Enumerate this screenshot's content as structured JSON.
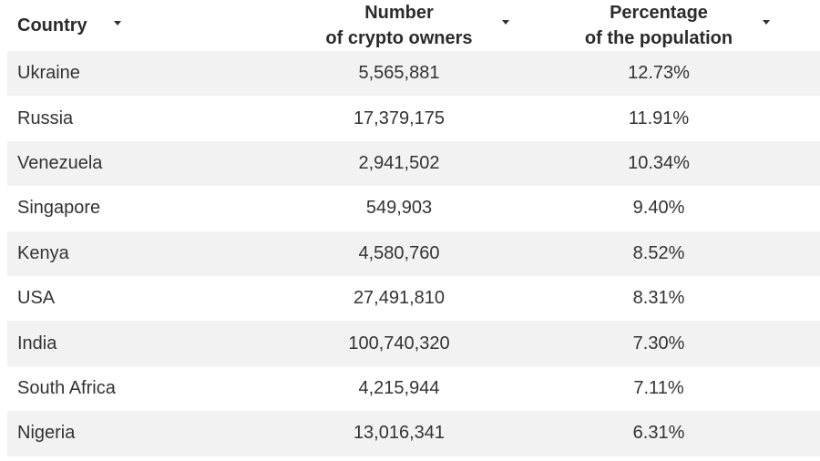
{
  "chart_data": {
    "type": "table",
    "columns": [
      {
        "label_line1": "Country",
        "label_line2": ""
      },
      {
        "label_line1": "Number",
        "label_line2": "of crypto owners"
      },
      {
        "label_line1": "Percentage",
        "label_line2": "of the population"
      }
    ],
    "rows": [
      {
        "country": "Ukraine",
        "owners": "5,565,881",
        "percent": "12.73%"
      },
      {
        "country": "Russia",
        "owners": "17,379,175",
        "percent": "11.91%"
      },
      {
        "country": "Venezuela",
        "owners": "2,941,502",
        "percent": "10.34%"
      },
      {
        "country": "Singapore",
        "owners": "549,903",
        "percent": "9.40%"
      },
      {
        "country": "Kenya",
        "owners": "4,580,760",
        "percent": "8.52%"
      },
      {
        "country": "USA",
        "owners": "27,491,810",
        "percent": "8.31%"
      },
      {
        "country": "India",
        "owners": "100,740,320",
        "percent": "7.30%"
      },
      {
        "country": "South Africa",
        "owners": "4,215,944",
        "percent": "7.11%"
      },
      {
        "country": "Nigeria",
        "owners": "13,016,341",
        "percent": "6.31%"
      }
    ]
  },
  "icons": {
    "sort": "sort-down-icon"
  },
  "colors": {
    "stripe": "#f2f2f2",
    "text": "#333333"
  }
}
